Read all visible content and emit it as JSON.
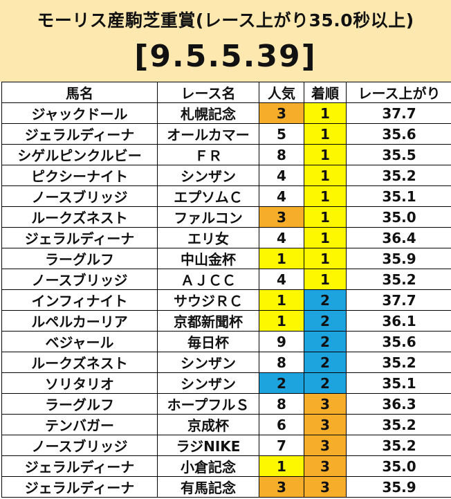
{
  "title": "モーリス産駒芝重賞(レース上がり35.0秒以上)",
  "code": "[9.5.5.39]",
  "columns": [
    "馬名",
    "レース名",
    "人気",
    "着順",
    "レース上がり"
  ],
  "colors": {
    "orange": "#f5ad2a",
    "yellow": "#fdf800",
    "blue": "#1da4df"
  },
  "rows": [
    {
      "horse": "ジャックドール",
      "race": "札幌記念",
      "pop": "3",
      "finish": "1",
      "last": "37.7"
    },
    {
      "horse": "ジェラルディーナ",
      "race": "オールカマー",
      "pop": "5",
      "finish": "1",
      "last": "35.6"
    },
    {
      "horse": "シゲルピンクルビー",
      "race": "ＦＲ",
      "pop": "8",
      "finish": "1",
      "last": "35.5"
    },
    {
      "horse": "ピクシーナイト",
      "race": "シンザン",
      "pop": "4",
      "finish": "1",
      "last": "35.2"
    },
    {
      "horse": "ノースブリッジ",
      "race": "エプソムＣ",
      "pop": "4",
      "finish": "1",
      "last": "35.1"
    },
    {
      "horse": "ルークズネスト",
      "race": "ファルコン",
      "pop": "3",
      "finish": "1",
      "last": "35.0"
    },
    {
      "horse": "ジェラルディーナ",
      "race": "エリ女",
      "pop": "4",
      "finish": "1",
      "last": "36.4"
    },
    {
      "horse": "ラーグルフ",
      "race": "中山金杯",
      "pop": "1",
      "finish": "1",
      "last": "35.9"
    },
    {
      "horse": "ノースブリッジ",
      "race": "ＡＪＣＣ",
      "pop": "4",
      "finish": "1",
      "last": "35.2"
    },
    {
      "horse": "インフィナイト",
      "race": "サウジＲＣ",
      "pop": "1",
      "finish": "2",
      "last": "37.7"
    },
    {
      "horse": "ルペルカーリア",
      "race": "京都新聞杯",
      "pop": "1",
      "finish": "2",
      "last": "36.1"
    },
    {
      "horse": "ベジャール",
      "race": "毎日杯",
      "pop": "9",
      "finish": "2",
      "last": "35.6"
    },
    {
      "horse": "ルークズネスト",
      "race": "シンザン",
      "pop": "8",
      "finish": "2",
      "last": "35.2"
    },
    {
      "horse": "ソリタリオ",
      "race": "シンザン",
      "pop": "2",
      "finish": "2",
      "last": "35.1"
    },
    {
      "horse": "ラーグルフ",
      "race": "ホープフルＳ",
      "pop": "8",
      "finish": "3",
      "last": "36.3"
    },
    {
      "horse": "テンバガー",
      "race": "京成杯",
      "pop": "6",
      "finish": "3",
      "last": "35.2"
    },
    {
      "horse": "ノースブリッジ",
      "race": "ラジNIKE",
      "pop": "7",
      "finish": "3",
      "last": "35.2"
    },
    {
      "horse": "ジェラルディーナ",
      "race": "小倉記念",
      "pop": "1",
      "finish": "3",
      "last": "35.0"
    },
    {
      "horse": "ジェラルディーナ",
      "race": "有馬記念",
      "pop": "3",
      "finish": "3",
      "last": "35.9"
    }
  ]
}
